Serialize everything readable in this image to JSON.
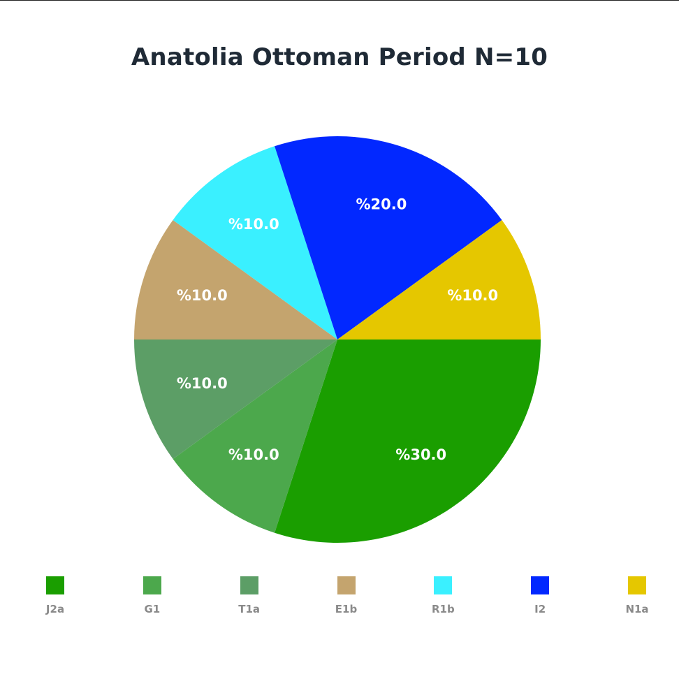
{
  "chart_data": {
    "type": "pie",
    "title": "Anatolia Ottoman Period N=10",
    "categories": [
      "J2a",
      "G1",
      "T1a",
      "E1b",
      "R1b",
      "I2",
      "N1a"
    ],
    "values": [
      30,
      10,
      10,
      10,
      10,
      20,
      10
    ],
    "labels": [
      "%30.0",
      "%10.0",
      "%10.0",
      "%10.0",
      "%10.0",
      "%20.0",
      "%10.0"
    ],
    "colors": [
      "#1a9e00",
      "#4ca84c",
      "#5c9e66",
      "#c4a46e",
      "#3af0ff",
      "#0228ff",
      "#e5c700"
    ],
    "legend_position": "bottom"
  }
}
